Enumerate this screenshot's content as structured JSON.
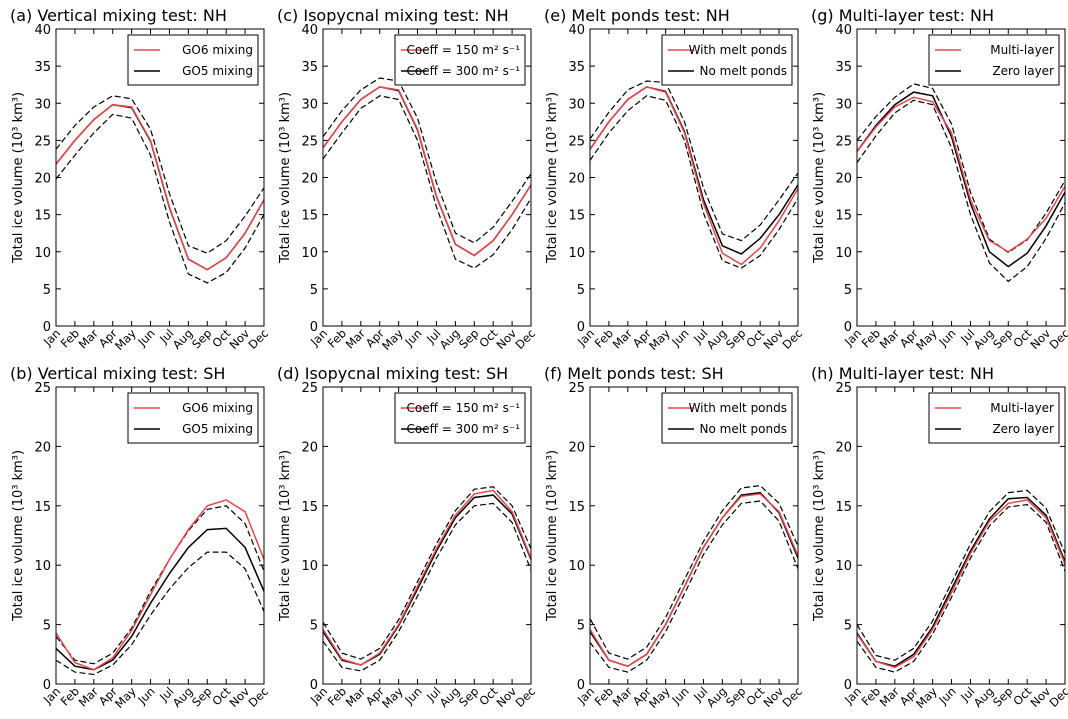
{
  "colors": {
    "model_a": "#e8474b",
    "model_b": "#000000",
    "envelope": "#000000",
    "axes": "#000000"
  },
  "months": [
    "Jan",
    "Feb",
    "Mar",
    "Apr",
    "May",
    "Jun",
    "Jul",
    "Aug",
    "Sep",
    "Oct",
    "Nov",
    "Dec"
  ],
  "chart_data": [
    {
      "type": "line",
      "title": "(a) Vertical mixing test: NH",
      "ylabel": "Total ice volume (10³ km³)",
      "ylim": [
        0,
        40
      ],
      "yticks": [
        0,
        5,
        10,
        15,
        20,
        25,
        30,
        35,
        40
      ],
      "legend_position": "top-right",
      "series": [
        {
          "name": "GO6 mixing",
          "color": "#e8474b",
          "style": "solid",
          "values": [
            21.8,
            25.0,
            27.8,
            29.8,
            29.5,
            25.0,
            16.0,
            9.0,
            7.6,
            9.2,
            12.5,
            17.0
          ]
        },
        {
          "name": "GO5 mixing",
          "color": "#000000",
          "style": "solid",
          "values": [
            21.8,
            25.0,
            27.8,
            29.8,
            29.4,
            24.9,
            15.9,
            9.0,
            7.6,
            9.2,
            12.5,
            17.0
          ]
        },
        {
          "color": "#000000",
          "style": "dashed",
          "values": [
            23.8,
            27.0,
            29.5,
            31.0,
            30.6,
            26.5,
            17.8,
            10.8,
            9.8,
            11.5,
            14.8,
            18.6
          ]
        },
        {
          "color": "#000000",
          "style": "dashed",
          "values": [
            19.8,
            23.0,
            26.0,
            28.5,
            28.0,
            23.0,
            14.0,
            7.0,
            5.8,
            7.2,
            10.5,
            15.0
          ]
        }
      ]
    },
    {
      "type": "line",
      "title": "(c) Isopycnal mixing test: NH",
      "ylabel": "Total ice volume (10³ km³)",
      "ylim": [
        0,
        40
      ],
      "yticks": [
        0,
        5,
        10,
        15,
        20,
        25,
        30,
        35,
        40
      ],
      "legend_position": "top-right",
      "series": [
        {
          "name": "Coeff = 150 m² s⁻¹",
          "color": "#e8474b",
          "style": "solid",
          "values": [
            24.0,
            27.5,
            30.5,
            32.2,
            31.8,
            26.5,
            17.5,
            11.0,
            9.5,
            11.5,
            15.0,
            19.0
          ]
        },
        {
          "name": "Coeff = 300 m² s⁻¹",
          "color": "#000000",
          "style": "solid",
          "values": [
            24.0,
            27.5,
            30.5,
            32.2,
            31.7,
            26.4,
            17.4,
            11.0,
            9.5,
            11.5,
            15.0,
            19.0
          ]
        },
        {
          "color": "#000000",
          "style": "dashed",
          "values": [
            25.5,
            29.0,
            31.8,
            33.4,
            33.0,
            28.0,
            19.3,
            12.5,
            11.2,
            13.3,
            16.8,
            20.5
          ]
        },
        {
          "color": "#000000",
          "style": "dashed",
          "values": [
            22.5,
            26.0,
            29.3,
            31.0,
            30.5,
            25.0,
            16.0,
            9.0,
            7.8,
            9.6,
            13.0,
            17.2
          ]
        }
      ]
    },
    {
      "type": "line",
      "title": "(e) Melt ponds test: NH",
      "ylabel": "Total ice volume (10³ km³)",
      "ylim": [
        0,
        40
      ],
      "yticks": [
        0,
        5,
        10,
        15,
        20,
        25,
        30,
        35,
        40
      ],
      "legend_position": "top-right",
      "series": [
        {
          "name": "With melt ponds",
          "color": "#e8474b",
          "style": "solid",
          "values": [
            23.8,
            27.5,
            30.5,
            32.2,
            31.5,
            26.0,
            16.5,
            9.8,
            8.3,
            10.5,
            14.2,
            18.5
          ]
        },
        {
          "name": "No melt ponds",
          "color": "#000000",
          "style": "solid",
          "values": [
            23.8,
            27.5,
            30.5,
            32.2,
            31.6,
            26.2,
            17.0,
            10.8,
            9.7,
            11.8,
            15.0,
            19.0
          ]
        },
        {
          "color": "#000000",
          "style": "dashed",
          "values": [
            25.2,
            28.8,
            31.8,
            33.0,
            32.8,
            27.5,
            18.6,
            12.4,
            11.5,
            13.6,
            17.0,
            20.6
          ]
        },
        {
          "color": "#000000",
          "style": "dashed",
          "values": [
            22.3,
            26.0,
            29.0,
            31.0,
            30.4,
            25.0,
            15.2,
            8.8,
            7.8,
            9.5,
            13.0,
            17.2
          ]
        }
      ]
    },
    {
      "type": "line",
      "title": "(g) Multi-layer test: NH",
      "ylabel": "Total ice volume (10³ km³)",
      "ylim": [
        0,
        40
      ],
      "yticks": [
        0,
        5,
        10,
        15,
        20,
        25,
        30,
        35,
        40
      ],
      "legend_position": "top-right",
      "series": [
        {
          "name": "Multi-layer",
          "color": "#e8474b",
          "style": "solid",
          "values": [
            23.5,
            26.8,
            29.5,
            30.8,
            30.2,
            26.0,
            17.0,
            11.5,
            10.0,
            11.7,
            14.5,
            18.8
          ]
        },
        {
          "name": "Zero layer",
          "color": "#000000",
          "style": "solid",
          "values": [
            23.5,
            27.0,
            29.8,
            31.5,
            31.0,
            25.5,
            16.5,
            10.0,
            8.0,
            9.8,
            13.5,
            18.0
          ]
        },
        {
          "color": "#000000",
          "style": "dashed",
          "values": [
            25.0,
            28.2,
            30.8,
            32.6,
            32.0,
            27.2,
            18.0,
            11.7,
            9.9,
            11.6,
            15.2,
            19.6
          ]
        },
        {
          "color": "#000000",
          "style": "dashed",
          "values": [
            22.0,
            25.6,
            28.7,
            30.4,
            29.8,
            24.0,
            15.0,
            8.5,
            6.0,
            8.0,
            11.8,
            16.6
          ]
        }
      ]
    },
    {
      "type": "line",
      "title": "(b) Vertical mixing test: SH",
      "ylabel": "Total ice volume (10³ km³)",
      "ylim": [
        0,
        25
      ],
      "yticks": [
        0,
        5,
        10,
        15,
        20,
        25
      ],
      "legend_position": "top-right",
      "series": [
        {
          "name": "GO6 mixing",
          "color": "#e8474b",
          "style": "solid",
          "values": [
            4.3,
            1.8,
            1.2,
            2.2,
            4.5,
            7.5,
            10.5,
            13.0,
            15.0,
            15.5,
            14.5,
            10.5
          ]
        },
        {
          "name": "GO5 mixing",
          "color": "#000000",
          "style": "solid",
          "values": [
            3.0,
            1.5,
            1.2,
            2.0,
            4.0,
            6.8,
            9.3,
            11.5,
            13.0,
            13.1,
            11.5,
            7.8
          ]
        },
        {
          "color": "#000000",
          "style": "dashed",
          "values": [
            4.0,
            2.0,
            1.7,
            2.6,
            4.7,
            7.8,
            10.5,
            12.9,
            14.7,
            15.0,
            13.5,
            9.5
          ]
        },
        {
          "color": "#000000",
          "style": "dashed",
          "values": [
            2.0,
            1.0,
            0.8,
            1.6,
            3.3,
            5.8,
            8.0,
            9.8,
            11.1,
            11.1,
            9.7,
            6.1
          ]
        }
      ]
    },
    {
      "type": "line",
      "title": "(d) Isopycnal mixing test: SH",
      "ylabel": "Total ice volume (10³ km³)",
      "ylim": [
        0,
        25
      ],
      "yticks": [
        0,
        5,
        10,
        15,
        20,
        25
      ],
      "legend_position": "top-right",
      "series": [
        {
          "name": "Coeff = 150 m² s⁻¹",
          "color": "#e8474b",
          "style": "solid",
          "values": [
            4.6,
            2.1,
            1.6,
            2.6,
            5.0,
            8.2,
            11.4,
            14.2,
            16.0,
            16.3,
            14.5,
            10.6
          ]
        },
        {
          "name": "Coeff = 300 m² s⁻¹",
          "color": "#000000",
          "style": "solid",
          "values": [
            4.4,
            2.0,
            1.6,
            2.5,
            4.9,
            8.0,
            11.2,
            14.0,
            15.7,
            15.9,
            14.3,
            10.5
          ]
        },
        {
          "color": "#000000",
          "style": "dashed",
          "values": [
            5.2,
            2.6,
            2.1,
            3.0,
            5.4,
            8.6,
            11.8,
            14.6,
            16.4,
            16.6,
            15.0,
            11.4
          ]
        },
        {
          "color": "#000000",
          "style": "dashed",
          "values": [
            3.6,
            1.4,
            1.1,
            2.0,
            4.4,
            7.4,
            10.6,
            13.4,
            15.0,
            15.2,
            13.6,
            9.6
          ]
        }
      ]
    },
    {
      "type": "line",
      "title": "(f) Melt ponds test: SH",
      "ylabel": "Total ice volume (10³ km³)",
      "ylim": [
        0,
        25
      ],
      "yticks": [
        0,
        5,
        10,
        15,
        20,
        25
      ],
      "legend_position": "top-right",
      "series": [
        {
          "name": "With melt ponds",
          "color": "#e8474b",
          "style": "solid",
          "values": [
            4.6,
            2.0,
            1.5,
            2.5,
            5.0,
            8.2,
            11.5,
            14.0,
            15.8,
            16.0,
            14.5,
            10.8
          ]
        },
        {
          "name": "No melt ponds",
          "color": "#000000",
          "style": "solid",
          "values": [
            4.4,
            2.0,
            1.5,
            2.5,
            5.0,
            8.2,
            11.5,
            14.0,
            15.9,
            16.1,
            14.4,
            10.6
          ]
        },
        {
          "color": "#000000",
          "style": "dashed",
          "values": [
            5.5,
            2.6,
            2.1,
            3.1,
            5.6,
            8.8,
            12.0,
            14.6,
            16.5,
            16.7,
            15.2,
            11.6
          ]
        },
        {
          "color": "#000000",
          "style": "dashed",
          "values": [
            3.5,
            1.4,
            1.0,
            2.0,
            4.4,
            7.6,
            10.9,
            13.4,
            15.2,
            15.4,
            13.7,
            9.7
          ]
        }
      ]
    },
    {
      "type": "line",
      "title": "(h) Multi-layer test: NH",
      "ylabel": "Total ice volume (10³ km³)",
      "ylim": [
        0,
        25
      ],
      "yticks": [
        0,
        5,
        10,
        15,
        20,
        25
      ],
      "legend_position": "top-right",
      "series": [
        {
          "name": "Multi-layer",
          "color": "#e8474b",
          "style": "solid",
          "values": [
            4.2,
            1.9,
            1.4,
            2.3,
            4.6,
            7.7,
            11.0,
            13.7,
            15.2,
            15.5,
            14.0,
            10.1
          ]
        },
        {
          "name": "Zero layer",
          "color": "#000000",
          "style": "solid",
          "values": [
            4.3,
            1.9,
            1.5,
            2.5,
            4.8,
            8.0,
            11.2,
            13.9,
            15.6,
            15.7,
            14.2,
            10.3
          ]
        },
        {
          "color": "#000000",
          "style": "dashed",
          "values": [
            5.0,
            2.4,
            2.0,
            3.0,
            5.3,
            8.5,
            11.8,
            14.5,
            16.1,
            16.3,
            14.8,
            11.0
          ]
        },
        {
          "color": "#000000",
          "style": "dashed",
          "values": [
            3.6,
            1.4,
            1.0,
            1.9,
            4.2,
            7.3,
            10.6,
            13.3,
            14.9,
            15.1,
            13.6,
            9.5
          ]
        }
      ]
    }
  ]
}
